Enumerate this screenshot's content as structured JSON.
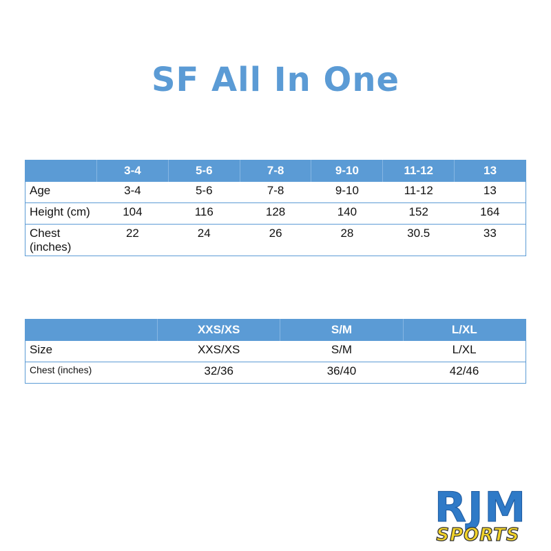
{
  "title": "SF All In One",
  "colors": {
    "accent": "#5b9bd5",
    "logo_blue": "#2f7ac7",
    "logo_yellow": "#f2d32a"
  },
  "kids_table": {
    "headers": [
      "",
      "3-4",
      "5-6",
      "7-8",
      "9-10",
      "11-12",
      "13"
    ],
    "rows": [
      {
        "label": "Age",
        "values": [
          "3-4",
          "5-6",
          "7-8",
          "9-10",
          "11-12",
          "13"
        ]
      },
      {
        "label": "Height (cm)",
        "values": [
          "104",
          "116",
          "128",
          "140",
          "152",
          "164"
        ]
      },
      {
        "label": "Chest (inches)",
        "values": [
          "22",
          "24",
          "26",
          "28",
          "30.5",
          "33"
        ]
      }
    ]
  },
  "adult_table": {
    "headers": [
      "",
      "XXS/XS",
      "S/M",
      "L/XL"
    ],
    "rows": [
      {
        "label": "Size",
        "values": [
          "XXS/XS",
          "S/M",
          "L/XL"
        ]
      },
      {
        "label": "Chest (inches)",
        "values": [
          "32/36",
          "36/40",
          "42/46"
        ]
      }
    ]
  },
  "logo": {
    "line1": "RJM",
    "line2": "SPORTS"
  }
}
